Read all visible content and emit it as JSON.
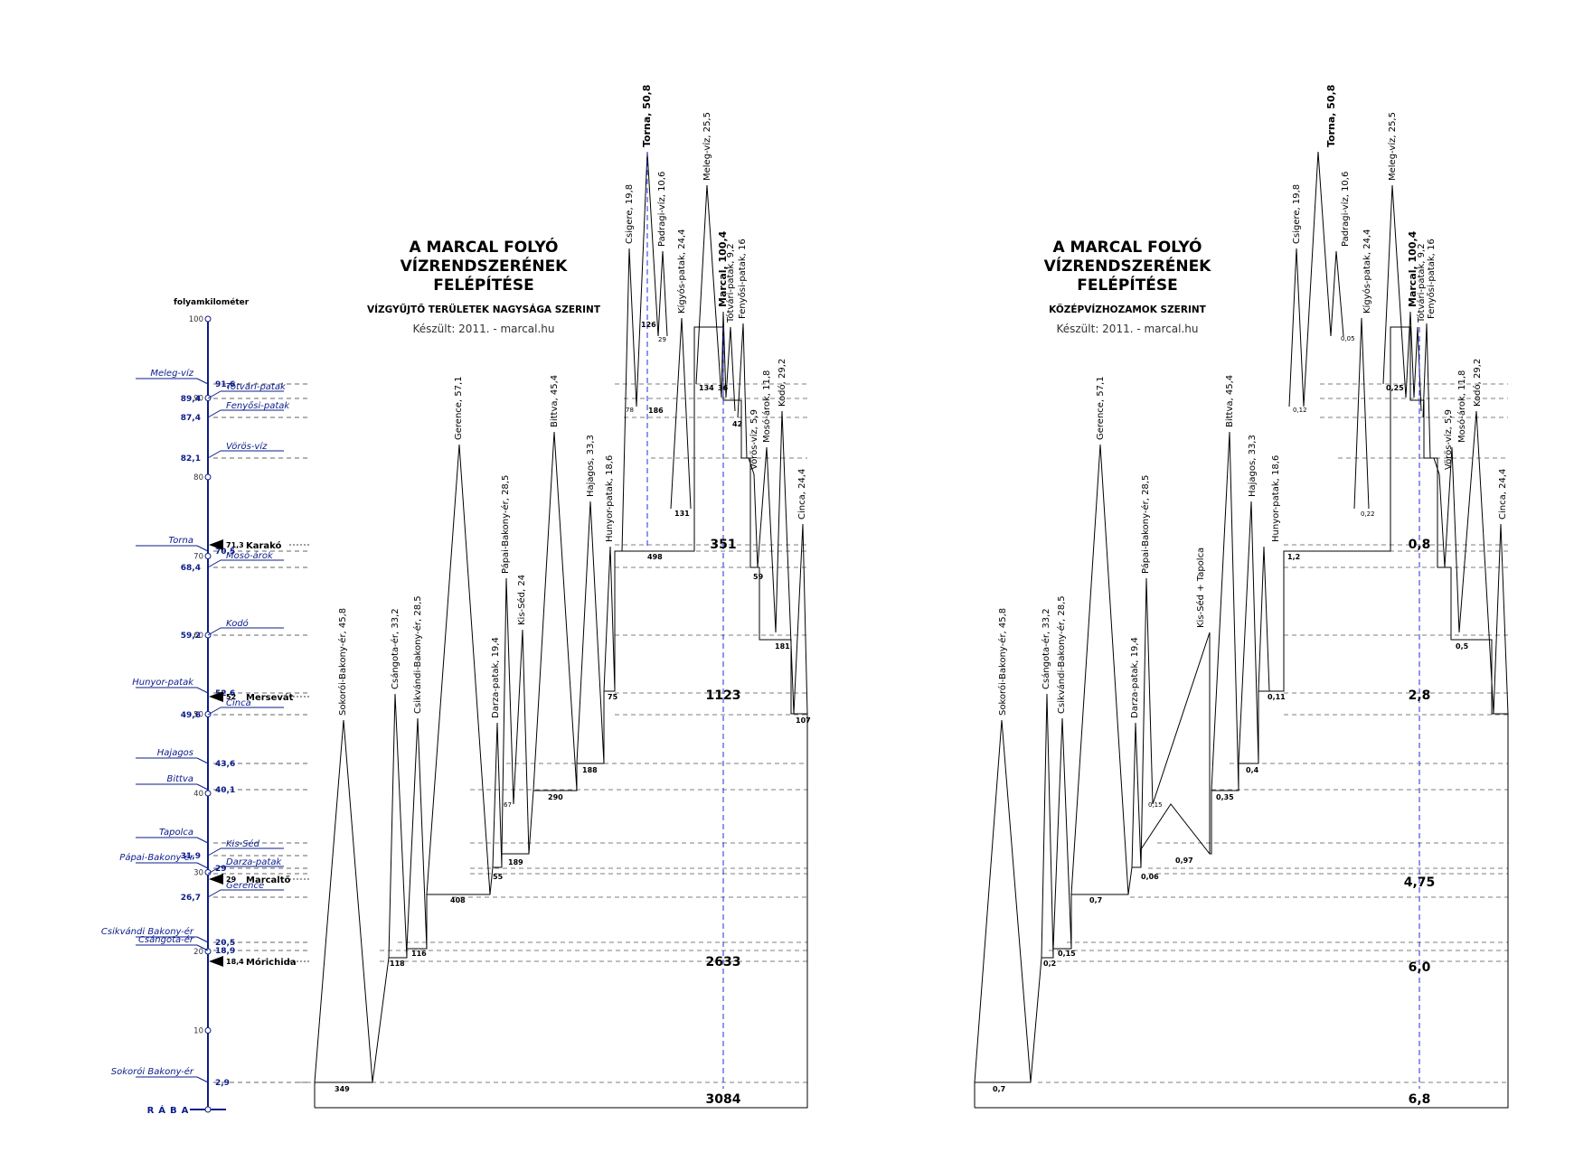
{
  "left_panel": {
    "title_lines": [
      "A MARCAL FOLYÓ",
      "VÍZRENDSZERÉNEK",
      "FELÉPÍTÉSE"
    ],
    "subtitle": "VÍZGYŰJTŐ TERÜLETEK NAGYSÁGA SZERINT",
    "credit": "Készült: 2011. - marcal.hu",
    "peaks": [
      {
        "label": "Sokorói-Bakony-ér, 45,8"
      },
      {
        "label": "Csángota-ér, 33,2"
      },
      {
        "label": "Csikvándi-Bakony-ér, 28,5"
      },
      {
        "label": "Gerence, 57,1"
      },
      {
        "label": "Darza-patak, 19,4"
      },
      {
        "label": "Pápai-Bakony-ér, 28,5"
      },
      {
        "label": "Kis-Séd, 24"
      },
      {
        "label": "Bittva, 45,4"
      },
      {
        "label": "Hajagos, 33,3"
      },
      {
        "label": "Hunyor-patak, 18,6"
      },
      {
        "label": "Csigere, 19,8"
      },
      {
        "label": "Torna, 50,8"
      },
      {
        "label": "Padragi-víz, 10,6"
      },
      {
        "label": "Kígyós-patak, 24,4"
      },
      {
        "label": "Meleg-víz, 25,5"
      },
      {
        "label": "Marcal, 100,4"
      },
      {
        "label": "Tótvári-patak, 9,2"
      },
      {
        "label": "Fenyősi-patak, 16"
      },
      {
        "label": "Vörös-víz, 5,9"
      },
      {
        "label": "Mosó-árok, 11,8"
      },
      {
        "label": "Kodó, 29,2"
      },
      {
        "label": "Cinca, 24,4"
      }
    ],
    "step_values": [
      "349",
      "118",
      "116",
      "408",
      "55",
      "67",
      "189",
      "290",
      "188",
      "75",
      "78",
      "126",
      "186",
      "29",
      "131",
      "498",
      "134",
      "36",
      "42",
      "59",
      "181",
      "107"
    ],
    "totals": [
      "351",
      "1123",
      "2633",
      "3084"
    ]
  },
  "right_panel": {
    "title_lines": [
      "A MARCAL FOLYÓ",
      "VÍZRENDSZERÉNEK",
      "FELÉPÍTÉSE"
    ],
    "subtitle": "KÖZÉPVÍZHOZAMOK SZERINT",
    "credit": "Készült: 2011. - marcal.hu",
    "peaks": [
      {
        "label": "Sokorói-Bakony-ér, 45,8"
      },
      {
        "label": "Csángota-ér, 33,2"
      },
      {
        "label": "Csikvándi-Bakony-ér, 28,5"
      },
      {
        "label": "Gerence, 57,1"
      },
      {
        "label": "Darza-patak, 19,4"
      },
      {
        "label": "Pápai-Bakony-ér, 28,5"
      },
      {
        "label": "Kis-Séd + Tapolca"
      },
      {
        "label": "Bittva, 45,4"
      },
      {
        "label": "Hajagos, 33,3"
      },
      {
        "label": "Hunyor-patak, 18,6"
      },
      {
        "label": "Csigere, 19,8"
      },
      {
        "label": "Torna, 50,8"
      },
      {
        "label": "Padragi-víz, 10,6"
      },
      {
        "label": "Kígyós-patak, 24,4"
      },
      {
        "label": "Meleg-víz, 25,5"
      },
      {
        "label": "Marcal, 100,4"
      },
      {
        "label": "Tótvári-patak, 9,2"
      },
      {
        "label": "Fenyősi-patak, 16"
      },
      {
        "label": "Vörös-víz, 5,9"
      },
      {
        "label": "Mosó-árok, 11,8"
      },
      {
        "label": "Kodó, 29,2"
      },
      {
        "label": "Cinca, 24,4"
      }
    ],
    "step_values": [
      "0,7",
      "0,2",
      "0,15",
      "0,7",
      "0,06",
      "0,15",
      "0,97",
      "0,35",
      "0,4",
      "0,11",
      "0,12",
      "0,05",
      "0,22",
      "1,2",
      "0,25",
      "0,5"
    ],
    "totals": [
      "0,8",
      "2,8",
      "4,75",
      "6,0",
      "6,8"
    ]
  },
  "axis": {
    "title": "folyamkilométer",
    "ticks": [
      "100",
      "90",
      "80",
      "70",
      "60",
      "50",
      "40",
      "30",
      "20",
      "10"
    ],
    "mouth_label": "RÁBA",
    "confluences": [
      {
        "name": "Meleg-víz",
        "km": "91,6"
      },
      {
        "name": "Tótvári-patak",
        "km": "89,4"
      },
      {
        "name": "Fenyősi-patak",
        "km": "87,4"
      },
      {
        "name": "Vörös-víz",
        "km": "82,1"
      },
      {
        "name": "Torna",
        "km": "70,5"
      },
      {
        "name": "Mosó-árok",
        "km": "68,4"
      },
      {
        "name": "Kodó",
        "km": "59,2"
      },
      {
        "name": "Hunyor-patak",
        "km": "52,6"
      },
      {
        "name": "Cinca",
        "km": "49,6"
      },
      {
        "name": "Hajagos",
        "km": "43,6"
      },
      {
        "name": "Bittva",
        "km": "40,1"
      },
      {
        "name": "Tapolca",
        "km": ""
      },
      {
        "name": "Kis-Séd",
        "km": "31,9"
      },
      {
        "name": "Pápai-Bakony-ér",
        "km": "29"
      },
      {
        "name": "Darza-patak",
        "km": ""
      },
      {
        "name": "Gerence",
        "km": "26,7"
      },
      {
        "name": "Csikvándi Bakony-ér",
        "km": "20,5"
      },
      {
        "name": "Csángota-ér",
        "km": "18,9"
      },
      {
        "name": "Sokorói Bakony-ér",
        "km": "2,9"
      }
    ],
    "towns": [
      {
        "name": "Karakó",
        "km": "71,3"
      },
      {
        "name": "Mersevát",
        "km": "52"
      },
      {
        "name": "Marcaltő",
        "km": "29"
      },
      {
        "name": "Mórichida",
        "km": "18,4"
      }
    ]
  },
  "colors": {
    "axis": "#0b1c8a",
    "accent_line": "#2a2ae0",
    "ink": "#000000"
  }
}
